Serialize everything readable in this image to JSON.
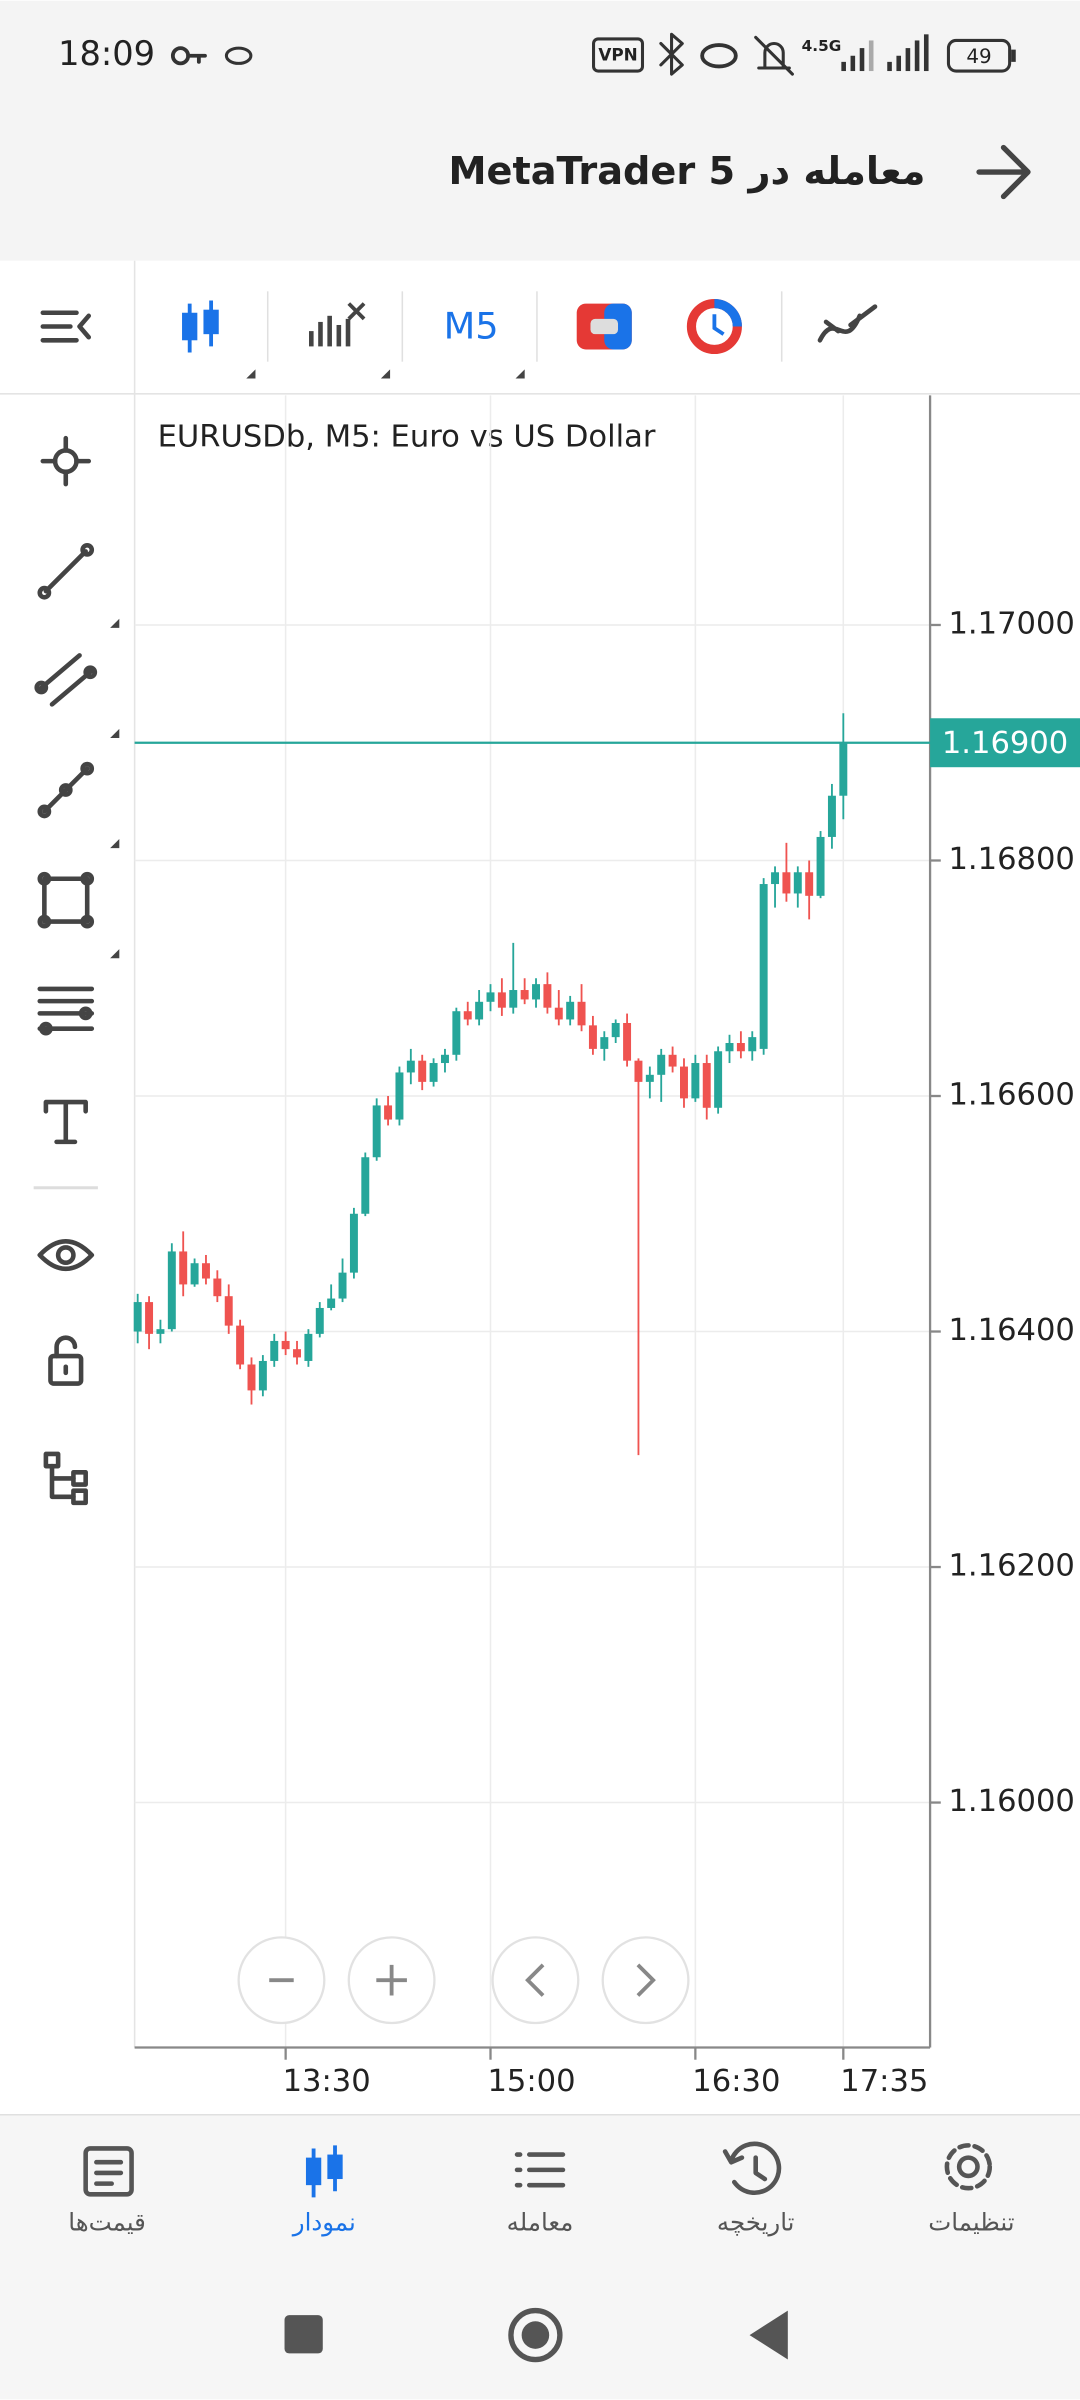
{
  "status_bar": {
    "time": "18:09",
    "vpn": "VPN",
    "network": "4.5G",
    "battery": "49"
  },
  "header": {
    "title": "معامله در MetaTrader 5"
  },
  "toolbar": {
    "timeframe": "M5"
  },
  "chart_data": {
    "type": "candlestick",
    "title": "EURUSDb, M5: Euro vs US Dollar",
    "x": [
      null,
      null,
      null,
      null,
      null,
      null,
      null,
      null,
      null,
      null,
      null,
      null,
      null,
      "13:30",
      null,
      null,
      null,
      null,
      null,
      null,
      null,
      null,
      null,
      null,
      null,
      null,
      null,
      null,
      null,
      null,
      null,
      "15:00",
      null,
      null,
      null,
      null,
      null,
      null,
      null,
      null,
      null,
      null,
      null,
      null,
      null,
      null,
      null,
      null,
      null,
      "16:30",
      null,
      null,
      null,
      null,
      null,
      null,
      null,
      null,
      null,
      null,
      null,
      null,
      "17:35"
    ],
    "open": [
      1.164,
      1.16425,
      1.16398,
      1.16402,
      1.16468,
      1.1644,
      1.16458,
      1.16445,
      1.1643,
      1.16405,
      1.16372,
      1.1635,
      1.16375,
      1.16392,
      1.16385,
      1.16375,
      1.16398,
      1.1642,
      1.16428,
      1.1645,
      1.165,
      1.16548,
      1.16592,
      1.1658,
      1.1662,
      1.1663,
      1.16612,
      1.16628,
      1.16635,
      1.16672,
      1.16665,
      1.1668,
      1.16688,
      1.16675,
      1.1669,
      1.16682,
      1.16695,
      1.16675,
      1.16665,
      1.1668,
      1.1666,
      1.1664,
      1.1665,
      1.16662,
      1.1663,
      1.16612,
      1.16618,
      1.16635,
      1.16625,
      1.16598,
      1.16628,
      1.1659,
      1.16638,
      1.16645,
      1.16638,
      1.1664,
      1.1678,
      1.1679,
      1.16772,
      1.1679,
      1.1677,
      1.1682,
      1.16855
    ],
    "high": [
      1.16432,
      1.1643,
      1.1641,
      1.16475,
      1.16485,
      1.16462,
      1.16465,
      1.16452,
      1.1644,
      1.1641,
      1.16378,
      1.1638,
      1.16398,
      1.164,
      1.16392,
      1.16402,
      1.16425,
      1.1644,
      1.16462,
      1.16505,
      1.16552,
      1.16598,
      1.166,
      1.16625,
      1.1664,
      1.16635,
      1.16632,
      1.1664,
      1.16675,
      1.1668,
      1.1669,
      1.16695,
      1.167,
      1.1673,
      1.167,
      1.167,
      1.16705,
      1.1669,
      1.16685,
      1.16695,
      1.16668,
      1.16655,
      1.16665,
      1.1667,
      1.16632,
      1.16625,
      1.1664,
      1.16642,
      1.16632,
      1.16635,
      1.16635,
      1.16642,
      1.16652,
      1.16655,
      1.16655,
      1.16785,
      1.16795,
      1.16815,
      1.16795,
      1.168,
      1.16825,
      1.16865,
      1.16925
    ],
    "low": [
      1.1639,
      1.16385,
      1.1639,
      1.164,
      1.1643,
      1.16438,
      1.1644,
      1.16425,
      1.16398,
      1.16368,
      1.16338,
      1.16345,
      1.1637,
      1.1638,
      1.16372,
      1.1637,
      1.16395,
      1.16418,
      1.16425,
      1.16445,
      1.16498,
      1.16545,
      1.16575,
      1.16575,
      1.1661,
      1.16605,
      1.16608,
      1.1662,
      1.1663,
      1.1666,
      1.1666,
      1.16672,
      1.16668,
      1.1667,
      1.16678,
      1.16675,
      1.1667,
      1.1666,
      1.1666,
      1.16655,
      1.16635,
      1.1663,
      1.16645,
      1.16625,
      1.16295,
      1.16598,
      1.16595,
      1.1662,
      1.1659,
      1.16595,
      1.1658,
      1.16585,
      1.16628,
      1.16632,
      1.1663,
      1.16635,
      1.1676,
      1.16765,
      1.1676,
      1.1675,
      1.16768,
      1.1681,
      1.16835
    ],
    "close": [
      1.16425,
      1.16398,
      1.16402,
      1.16468,
      1.1644,
      1.16458,
      1.16445,
      1.1643,
      1.16405,
      1.16372,
      1.1635,
      1.16375,
      1.16392,
      1.16385,
      1.16378,
      1.16398,
      1.1642,
      1.16428,
      1.1645,
      1.165,
      1.16548,
      1.16592,
      1.1658,
      1.1662,
      1.1663,
      1.16612,
      1.16628,
      1.16635,
      1.16672,
      1.16665,
      1.1668,
      1.16688,
      1.16675,
      1.1669,
      1.16682,
      1.16695,
      1.16675,
      1.16665,
      1.1668,
      1.1666,
      1.1664,
      1.1665,
      1.16662,
      1.1663,
      1.16612,
      1.16618,
      1.16635,
      1.16625,
      1.16598,
      1.16628,
      1.1659,
      1.16638,
      1.16645,
      1.16638,
      1.1665,
      1.1678,
      1.1679,
      1.16772,
      1.1679,
      1.1677,
      1.1682,
      1.16855,
      1.169
    ],
    "up_color": "#26a69a",
    "down_color": "#ef5350",
    "ylim": [
      1.15792,
      1.17195
    ],
    "yticks": [
      {
        "value": 1.16,
        "label": "1.16000"
      },
      {
        "value": 1.162,
        "label": "1.16200"
      },
      {
        "value": 1.164,
        "label": "1.16400"
      },
      {
        "value": 1.166,
        "label": "1.16600"
      },
      {
        "value": 1.168,
        "label": "1.16800"
      },
      {
        "value": 1.17,
        "label": "1.17000"
      }
    ],
    "price_line": {
      "value": 1.169,
      "label": "1.16900"
    },
    "price_line_color": "#26a69a",
    "grid": true
  },
  "bottom_nav": {
    "items": [
      "قیمت‌ها",
      "نمودار",
      "معامله",
      "تاریخچه",
      "تنظیمات"
    ]
  }
}
